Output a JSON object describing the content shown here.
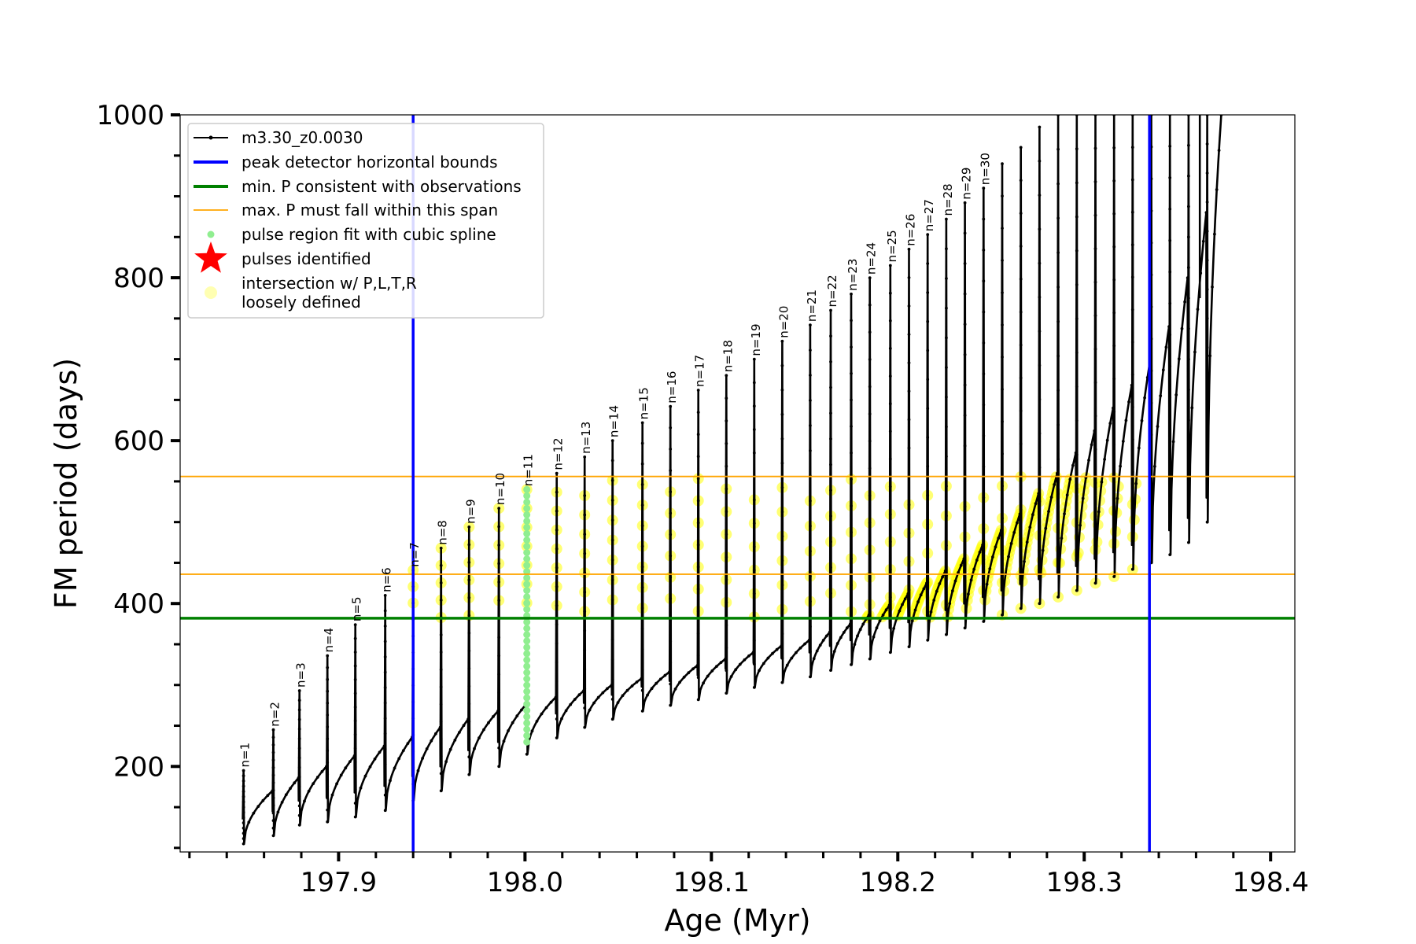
{
  "chart_data": {
    "type": "line",
    "title": "",
    "xlabel": "Age (Myr)",
    "ylabel": "FM period (days)",
    "xlim": [
      197.815,
      198.413
    ],
    "ylim": [
      95,
      1000
    ],
    "x_ticks": [
      197.9,
      198.0,
      198.1,
      198.2,
      198.3,
      198.4
    ],
    "x_tick_labels": [
      "197.9",
      "198.0",
      "198.1",
      "198.2",
      "198.3",
      "198.4"
    ],
    "y_ticks": [
      200,
      400,
      600,
      800,
      1000
    ],
    "y_tick_labels": [
      "200",
      "400",
      "600",
      "800",
      "1000"
    ],
    "grid": false,
    "legend_position": "top-left",
    "series": [
      {
        "name": "m3.30_z0.0030",
        "color": "#000000",
        "pulse_ages": [
          197.849,
          197.865,
          197.879,
          197.894,
          197.909,
          197.925,
          197.94,
          197.955,
          197.97,
          197.986,
          198.001,
          198.017,
          198.032,
          198.047,
          198.063,
          198.078,
          198.093,
          198.108,
          198.123,
          198.138,
          198.153,
          198.164,
          198.175,
          198.185,
          198.196,
          198.206,
          198.216,
          198.226,
          198.236,
          198.246,
          198.256,
          198.266,
          198.276,
          198.286,
          198.296,
          198.306,
          198.316,
          198.326,
          198.336,
          198.346,
          198.356,
          198.366
        ],
        "pulse_peaks": [
          195,
          245,
          293,
          336,
          374,
          410,
          441,
          468,
          494,
          517,
          540,
          560,
          580,
          600,
          622,
          642,
          662,
          680,
          700,
          722,
          742,
          760,
          780,
          800,
          815,
          835,
          853,
          872,
          892,
          910,
          940,
          960,
          985,
          1000,
          1000,
          1000,
          1000,
          1000,
          1000,
          1000,
          1000,
          1000
        ],
        "interpulse_start": [
          105,
          115,
          128,
          132,
          138,
          146,
          158,
          170,
          190,
          200,
          215,
          235,
          248,
          258,
          268,
          275,
          282,
          290,
          297,
          303,
          310,
          318,
          325,
          332,
          340,
          347,
          355,
          362,
          370,
          378,
          386,
          394,
          400,
          408,
          416,
          425,
          433,
          442,
          450,
          460,
          475,
          500
        ],
        "interpulse_end": [
          170,
          186,
          200,
          213,
          225,
          236,
          248,
          258,
          268,
          276,
          285,
          293,
          300,
          308,
          316,
          324,
          332,
          340,
          348,
          355,
          365,
          375,
          386,
          398,
          412,
          425,
          440,
          455,
          472,
          490,
          510,
          535,
          560,
          585,
          612,
          640,
          668,
          700,
          740,
          800,
          880,
          1000
        ],
        "labeled_pulses": [
          "n=1",
          "n=2",
          "n=3",
          "n=4",
          "n=5",
          "n=6",
          "n=7",
          "n=8",
          "n=9",
          "n=10",
          "n=11",
          "n=12",
          "n=13",
          "n=14",
          "n=15",
          "n=16",
          "n=17",
          "n=18",
          "n=19",
          "n=20",
          "n=21",
          "n=22",
          "n=23",
          "n=24",
          "n=25",
          "n=26",
          "n=27",
          "n=28",
          "n=29",
          "n=30"
        ]
      },
      {
        "name": "peak detector horizontal bounds",
        "color": "#0000ff",
        "x_values": [
          197.94,
          198.335
        ]
      },
      {
        "name": "min. P consistent with observations",
        "color": "#008000",
        "y_value": 382
      },
      {
        "name": "max. P must fall within this span",
        "color": "#ffa500",
        "y_values": [
          436,
          556
        ]
      },
      {
        "name": "pulse region fit with cubic spline",
        "color": "#90ee90",
        "x_value": 198.001,
        "y_range": [
          230,
          540
        ]
      },
      {
        "name": "pulses identified",
        "color": "#ff0000"
      },
      {
        "name": "intersection w/ P,L,T,R\nloosely defined",
        "color": "#ffff00",
        "x_range": [
          197.94,
          198.335
        ],
        "y_range": [
          382,
          556
        ]
      }
    ]
  }
}
